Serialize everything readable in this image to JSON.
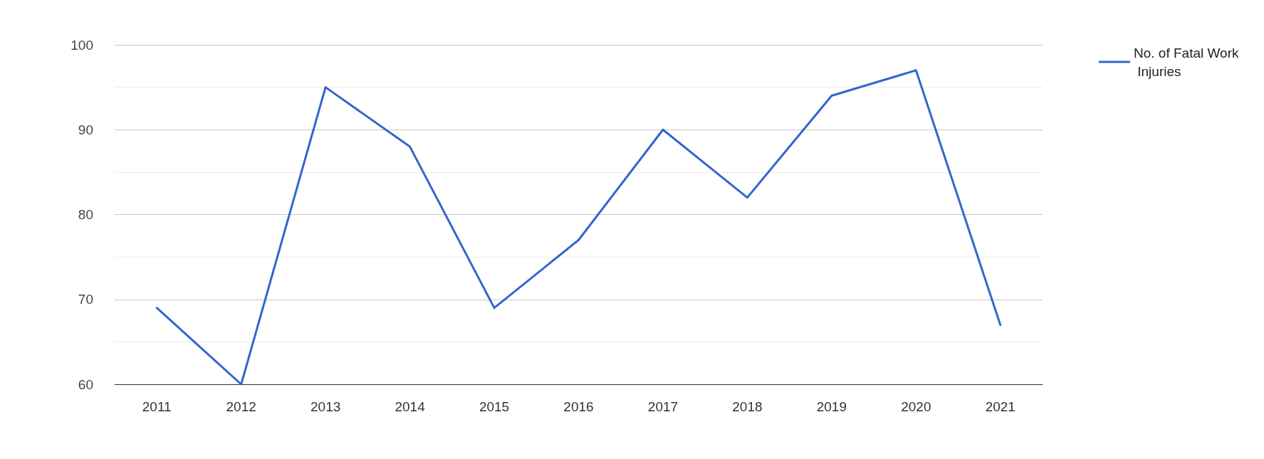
{
  "chart_data": {
    "type": "line",
    "categories": [
      "2011",
      "2012",
      "2013",
      "2014",
      "2015",
      "2016",
      "2017",
      "2018",
      "2019",
      "2020",
      "2021"
    ],
    "series": [
      {
        "name": "No. of Fatal Work Injuries",
        "color": "#3366cc",
        "values": [
          69,
          60,
          95,
          88,
          69,
          77,
          90,
          82,
          94,
          97,
          67
        ]
      }
    ],
    "ylim": [
      60,
      100
    ],
    "yticks": [
      60,
      70,
      80,
      90,
      100
    ],
    "grid": "y",
    "legend": "top right",
    "marker": "none",
    "line_style": "solid"
  }
}
